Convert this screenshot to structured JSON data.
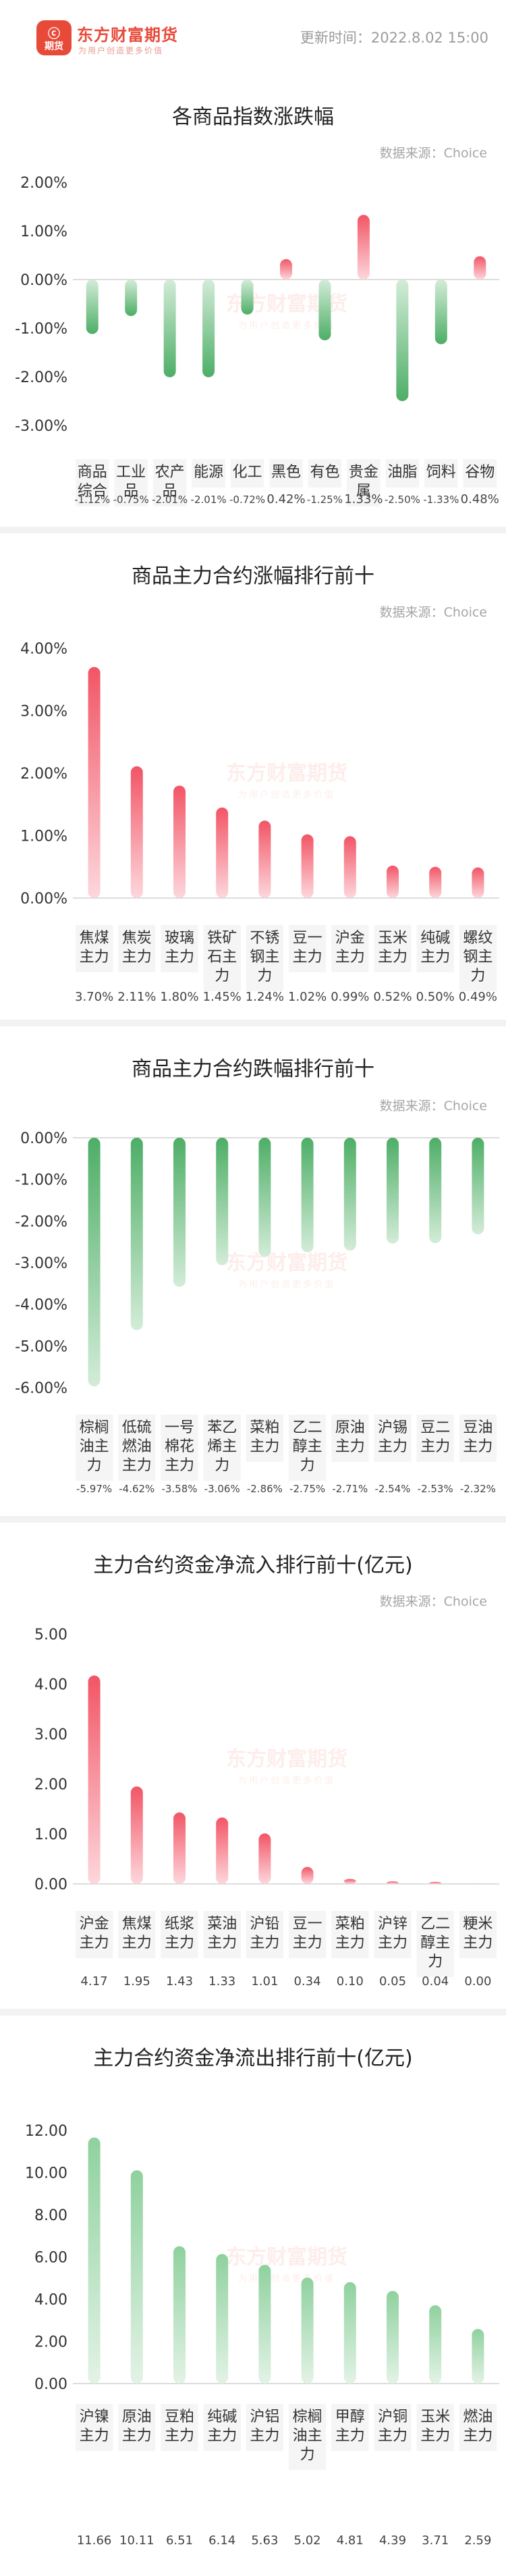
{
  "header": {
    "brand_name": "东方财富期货",
    "slogan": "为用户创造更多价值",
    "logo_text_top": "ⓒ",
    "logo_text_bottom": "期货",
    "update_time": "更新时间：2022.8.02 15:00"
  },
  "watermark": {
    "brand": "东方财富期货",
    "slogan": "为用户创造更多价值"
  },
  "colors": {
    "up": "#f25566",
    "down": "#5cb874",
    "axis_text": "#333333",
    "grid": "#bbbbbb"
  },
  "chart_data": [
    {
      "type": "bar",
      "title": "各商品指数涨跌幅",
      "source": "数据来源：Choice",
      "categories": [
        "商品\n综合",
        "工业\n品",
        "农产\n品",
        "能源",
        "化工",
        "黑色",
        "有色",
        "贵金\n属",
        "油脂",
        "饲料",
        "谷物"
      ],
      "values": [
        -1.12,
        -0.75,
        -2.01,
        -2.01,
        -0.72,
        0.42,
        -1.25,
        1.33,
        -2.5,
        -1.33,
        0.48
      ],
      "value_labels": [
        "-1.12%",
        "-0.75%",
        "-2.01%",
        "-2.01%",
        "-0.72%",
        "0.42%",
        "-1.25%",
        "1.33%",
        "-2.50%",
        "-1.33%",
        "0.48%"
      ],
      "ylim": [
        -3,
        2
      ],
      "yticks": [
        2,
        1,
        0,
        -1,
        -2,
        -3
      ],
      "ytick_labels": [
        "2.00%",
        "1.00%",
        "0.00%",
        "-1.00%",
        "-2.00%",
        "-3.00%"
      ],
      "grid": false
    },
    {
      "type": "bar",
      "title": "商品主力合约涨幅排行前十",
      "source": "数据来源：Choice",
      "categories": [
        "焦煤\n主力",
        "焦炭\n主力",
        "玻璃\n主力",
        "铁矿\n石主\n力",
        "不锈\n钢主\n力",
        "豆一\n主力",
        "沪金\n主力",
        "玉米\n主力",
        "纯碱\n主力",
        "螺纹\n钢主\n力"
      ],
      "values": [
        3.7,
        2.11,
        1.8,
        1.45,
        1.24,
        1.02,
        0.99,
        0.52,
        0.5,
        0.49
      ],
      "value_labels": [
        "3.70%",
        "2.11%",
        "1.80%",
        "1.45%",
        "1.24%",
        "1.02%",
        "0.99%",
        "0.52%",
        "0.50%",
        "0.49%"
      ],
      "ylim": [
        0,
        4
      ],
      "yticks": [
        4,
        3,
        2,
        1,
        0
      ],
      "ytick_labels": [
        "4.00%",
        "3.00%",
        "2.00%",
        "1.00%",
        "0.00%"
      ],
      "grid": false
    },
    {
      "type": "bar",
      "title": "商品主力合约跌幅排行前十",
      "source": "数据来源：Choice",
      "categories": [
        "棕榈\n油主\n力",
        "低硫\n燃油\n主力",
        "一号\n棉花\n主力",
        "苯乙\n烯主\n力",
        "菜粕\n主力",
        "乙二\n醇主\n力",
        "原油\n主力",
        "沪锡\n主力",
        "豆二\n主力",
        "豆油\n主力"
      ],
      "values": [
        -5.97,
        -4.62,
        -3.58,
        -3.06,
        -2.86,
        -2.75,
        -2.71,
        -2.54,
        -2.53,
        -2.32
      ],
      "value_labels": [
        "-5.97%",
        "-4.62%",
        "-3.58%",
        "-3.06%",
        "-2.86%",
        "-2.75%",
        "-2.71%",
        "-2.54%",
        "-2.53%",
        "-2.32%"
      ],
      "ylim": [
        -6,
        0
      ],
      "yticks": [
        0,
        -1,
        -2,
        -3,
        -4,
        -5,
        -6
      ],
      "ytick_labels": [
        "0.00%",
        "-1.00%",
        "-2.00%",
        "-3.00%",
        "-4.00%",
        "-5.00%",
        "-6.00%"
      ],
      "grid": false
    },
    {
      "type": "bar",
      "title": "主力合约资金净流入排行前十(亿元)",
      "source": "数据来源：Choice",
      "categories": [
        "沪金\n主力",
        "焦煤\n主力",
        "纸浆\n主力",
        "菜油\n主力",
        "沪铅\n主力",
        "豆一\n主力",
        "菜粕\n主力",
        "沪锌\n主力",
        "乙二\n醇主\n力",
        "粳米\n主力"
      ],
      "values": [
        4.17,
        1.95,
        1.43,
        1.33,
        1.01,
        0.34,
        0.1,
        0.05,
        0.04,
        0.0
      ],
      "value_labels": [
        "4.17",
        "1.95",
        "1.43",
        "1.33",
        "1.01",
        "0.34",
        "0.10",
        "0.05",
        "0.04",
        "0.00"
      ],
      "ylim": [
        0,
        5
      ],
      "yticks": [
        5,
        4,
        3,
        2,
        1,
        0
      ],
      "ytick_labels": [
        "5.00",
        "4.00",
        "3.00",
        "2.00",
        "1.00",
        "0.00"
      ],
      "grid": false
    },
    {
      "type": "bar",
      "title": "主力合约资金净流出排行前十(亿元)",
      "source": "",
      "categories": [
        "沪镍\n主力",
        "原油\n主力",
        "豆粕\n主力",
        "纯碱\n主力",
        "沪铝\n主力",
        "棕榈\n油主\n力",
        "甲醇\n主力",
        "沪铜\n主力",
        "玉米\n主力",
        "燃油\n主力"
      ],
      "values": [
        11.66,
        10.11,
        6.51,
        6.14,
        5.63,
        5.02,
        4.81,
        4.39,
        3.71,
        2.59
      ],
      "value_labels": [
        "11.66",
        "10.11",
        "6.51",
        "6.14",
        "5.63",
        "5.02",
        "4.81",
        "4.39",
        "3.71",
        "2.59"
      ],
      "ylim": [
        0,
        12
      ],
      "yticks": [
        12,
        10,
        8,
        6,
        4,
        2,
        0
      ],
      "ytick_labels": [
        "12.00",
        "10.00",
        "8.00",
        "6.00",
        "4.00",
        "2.00",
        "0.00"
      ],
      "grid": false
    }
  ]
}
